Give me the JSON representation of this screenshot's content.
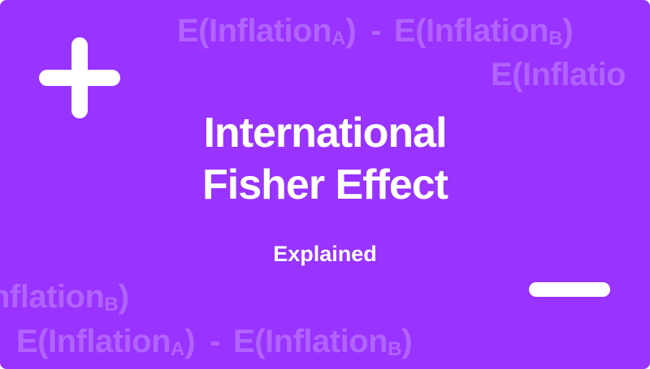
{
  "title_line1": "International",
  "title_line2": "Fisher Effect",
  "subtitle": "Explained",
  "watermark": {
    "e_prefix": "E(",
    "word": "Inflation",
    "word_cut": "Inflatio",
    "word_left_cut": "nflation",
    "sub_a": "A",
    "sub_b": "B",
    "close": ")",
    "minus": "-"
  },
  "colors": {
    "background": "#9933ff",
    "foreground": "#ffffff",
    "watermark": "#b163ff"
  },
  "icons": {
    "plus": "plus-icon",
    "minus": "minus-icon"
  }
}
